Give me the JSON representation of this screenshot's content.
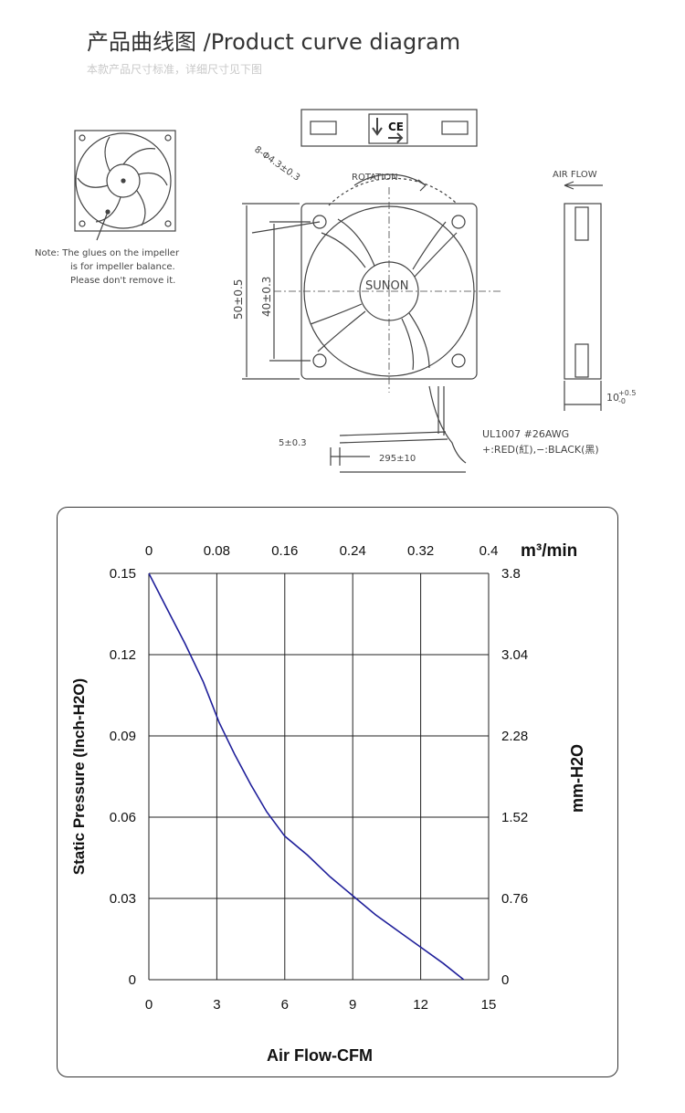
{
  "header": {
    "title": "产品曲线图 /Product curve diagram",
    "subtitle": "本款产品尺寸标准，详细尺寸见下图"
  },
  "drawing": {
    "note_line1": "Note:  The glues on the impeller",
    "note_line2": "is for impeller balance.",
    "note_line3": "Please don't remove it.",
    "holes": "8-Φ4.3±0.3",
    "rotation": "ROTATION",
    "air_flow": "AIR FLOW",
    "brand": "SUNON",
    "dim_outer": "50±0.5",
    "dim_inner": "40±0.3",
    "dim_thickness": "10",
    "dim_thickness_tol_upper": "+0.5",
    "dim_thickness_tol_lower": "-0",
    "dim_strip": "5±0.3",
    "dim_lead": "295±10",
    "wire_spec": "UL1007  #26AWG",
    "wire_colors": "+:RED(紅),−:BLACK(黑)",
    "cert_mark": "CE"
  },
  "chart_data": {
    "type": "line",
    "title": "",
    "xlabel": "Air Flow-CFM",
    "ylabel": "Static Pressure (Inch-H2O)",
    "x2label": "m³/min",
    "y2label": "mm-H2O",
    "x_ticks": [
      0,
      3,
      6,
      9,
      12,
      15
    ],
    "y_ticks": [
      0,
      0.03,
      0.06,
      0.09,
      0.12,
      0.15
    ],
    "x2_ticks": [
      "0",
      "0.08",
      "0.16",
      "0.24",
      "0.32",
      "0.4"
    ],
    "y2_ticks": [
      "0",
      "0.76",
      "1.52",
      "2.28",
      "3.04",
      "3.8"
    ],
    "xlim": [
      0,
      15
    ],
    "ylim": [
      0,
      0.15
    ],
    "grid": true,
    "series": [
      {
        "color": "#1f1f9a",
        "x": [
          0,
          0.8,
          1.6,
          2.4,
          3.1,
          3.8,
          4.5,
          5.2,
          6.0,
          7.0,
          8.0,
          9.0,
          10.0,
          11.0,
          12.0,
          13.0,
          13.9
        ],
        "y": [
          0.15,
          0.137,
          0.124,
          0.11,
          0.095,
          0.083,
          0.072,
          0.062,
          0.053,
          0.046,
          0.038,
          0.031,
          0.024,
          0.018,
          0.012,
          0.006,
          0.0
        ]
      }
    ]
  }
}
